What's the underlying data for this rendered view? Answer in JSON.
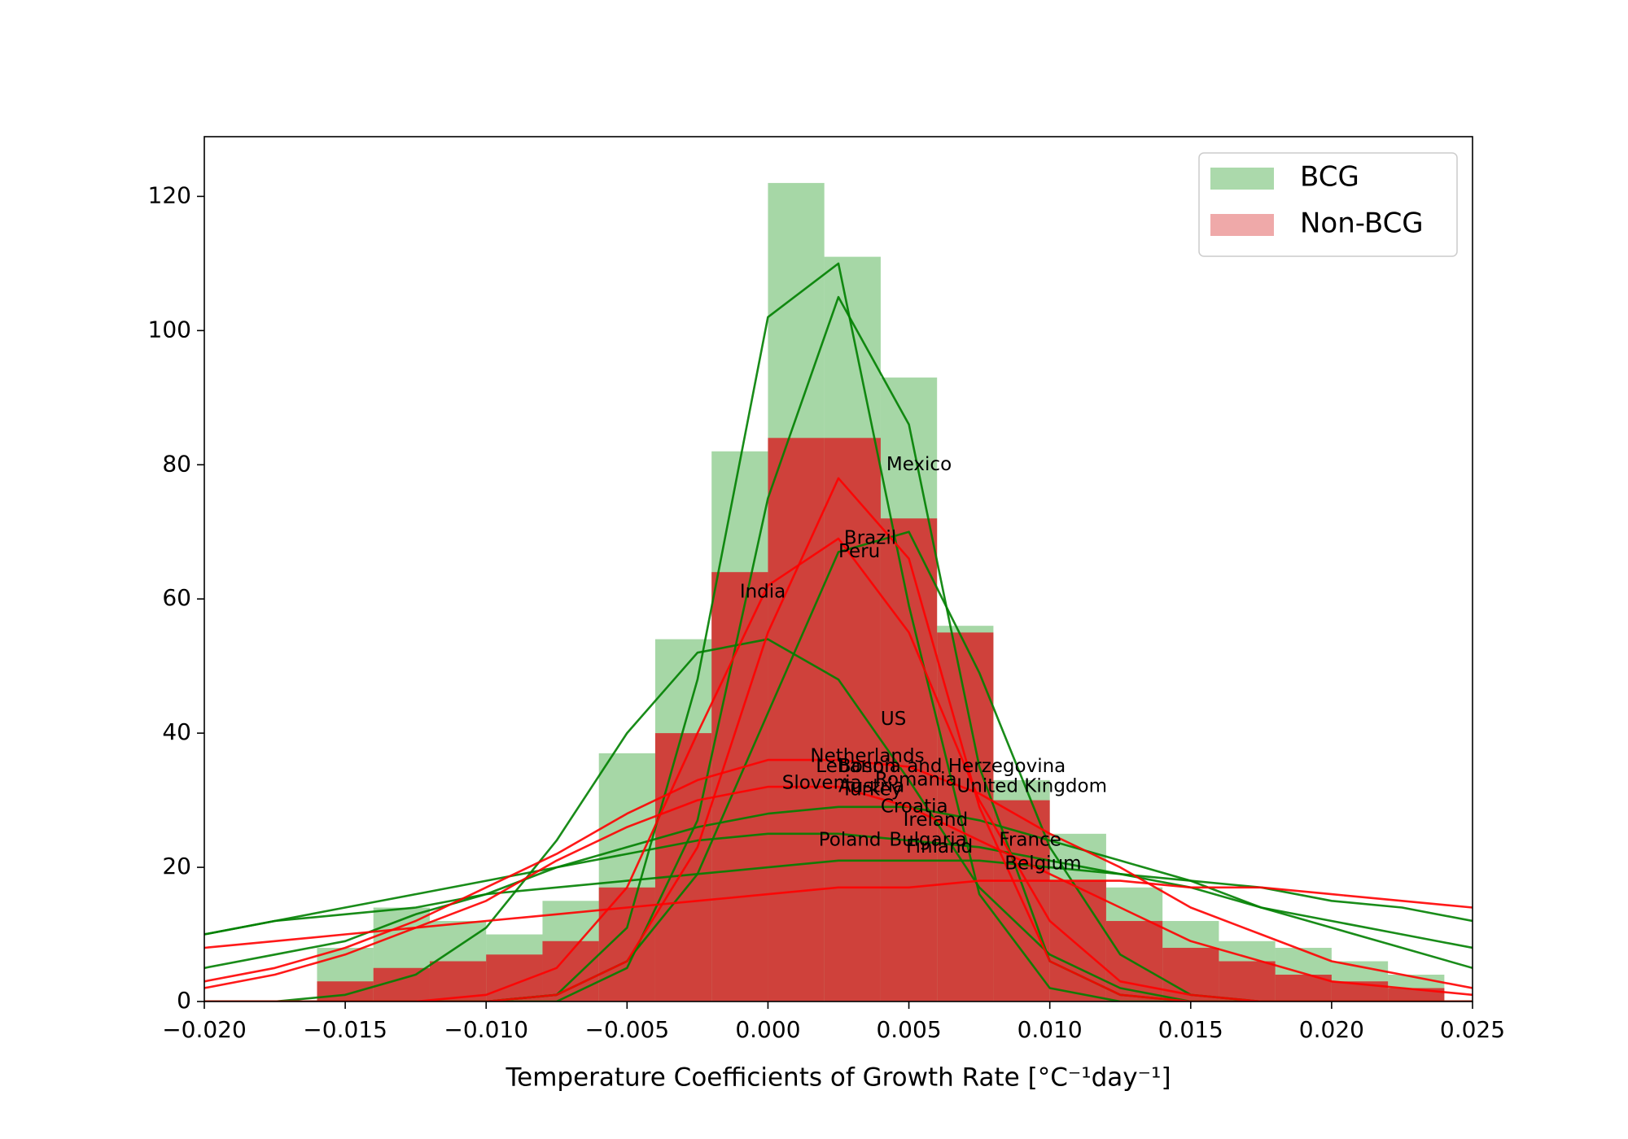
{
  "chart_data": {
    "type": "histogram",
    "xlabel": "Temperature Coefficients of Growth Rate [°C⁻¹day⁻¹]",
    "xlim": [
      -0.02,
      0.025
    ],
    "ylim": [
      0,
      128.9
    ],
    "xticks": [
      {
        "value": -0.02,
        "label": "−0.020"
      },
      {
        "value": -0.015,
        "label": "−0.015"
      },
      {
        "value": -0.01,
        "label": "−0.010"
      },
      {
        "value": -0.005,
        "label": "−0.005"
      },
      {
        "value": 0,
        "label": "0.000"
      },
      {
        "value": 0.005,
        "label": "0.005"
      },
      {
        "value": 0.01,
        "label": "0.010"
      },
      {
        "value": 0.015,
        "label": "0.015"
      },
      {
        "value": 0.02,
        "label": "0.020"
      },
      {
        "value": 0.025,
        "label": "0.025"
      }
    ],
    "yticks": [
      0,
      20,
      40,
      60,
      80,
      100,
      120
    ],
    "legend": "upper right",
    "series": [
      {
        "name": "BCG",
        "color": "#2ca02c",
        "bins": [
          -0.016,
          -0.014,
          -0.012,
          -0.01,
          -0.008,
          -0.006,
          -0.004,
          -0.002,
          0,
          0.002,
          0.004,
          0.006,
          0.008,
          0.01,
          0.012,
          0.014,
          0.016,
          0.018,
          0.02,
          0.022,
          0.024
        ],
        "values": [
          8,
          14,
          12,
          10,
          15,
          37,
          54,
          82,
          122,
          111,
          93,
          56,
          33,
          25,
          17,
          12,
          9,
          8,
          6,
          4
        ]
      },
      {
        "name": "Non-BCG",
        "color": "#d62728",
        "bins": [
          -0.016,
          -0.014,
          -0.012,
          -0.01,
          -0.008,
          -0.006,
          -0.004,
          -0.002,
          0,
          0.002,
          0.004,
          0.006,
          0.008,
          0.01,
          0.012,
          0.014,
          0.016,
          0.018,
          0.02,
          0.022,
          0.024
        ],
        "values": [
          3,
          5,
          6,
          7,
          9,
          17,
          40,
          64,
          84,
          84,
          72,
          55,
          30,
          18,
          12,
          8,
          6,
          4,
          3,
          2
        ]
      }
    ],
    "curve_x": [
      -0.02,
      -0.0175,
      -0.015,
      -0.0125,
      -0.01,
      -0.0075,
      -0.005,
      -0.0025,
      0,
      0.0025,
      0.005,
      0.0075,
      0.01,
      0.0125,
      0.015,
      0.0175,
      0.02,
      0.0225,
      0.025
    ],
    "curves": [
      {
        "color": "#008000",
        "values": [
          0,
          0,
          0,
          0,
          0,
          1,
          11,
          48,
          102,
          110,
          59,
          16,
          2,
          0,
          0,
          0,
          0,
          0,
          0
        ]
      },
      {
        "color": "#008000",
        "values": [
          0,
          0,
          0,
          0,
          0,
          0,
          5,
          27,
          75,
          105,
          86,
          35,
          6,
          1,
          0,
          0,
          0,
          0,
          0
        ]
      },
      {
        "color": "#008000",
        "values": [
          0,
          0,
          0,
          0,
          0,
          1,
          6,
          19,
          43,
          67,
          70,
          49,
          23,
          7,
          1,
          0,
          0,
          0,
          0
        ]
      },
      {
        "color": "#008000",
        "values": [
          0,
          0,
          1,
          4,
          11,
          24,
          40,
          52,
          54,
          48,
          33,
          17,
          7,
          2,
          0,
          0,
          0,
          0,
          0
        ]
      },
      {
        "color": "#008000",
        "values": [
          5,
          7,
          9,
          13,
          16,
          20,
          23,
          26,
          28,
          29,
          29,
          27,
          24,
          21,
          18,
          14,
          11,
          8,
          5
        ]
      },
      {
        "color": "#008000",
        "values": [
          10,
          12,
          13,
          14,
          16,
          17,
          18,
          19,
          20,
          21,
          21,
          21,
          20,
          19,
          18,
          17,
          15,
          14,
          12
        ]
      },
      {
        "color": "#008000",
        "values": [
          10,
          12,
          14,
          16,
          18,
          20,
          22,
          24,
          25,
          25,
          24,
          23,
          21,
          19,
          17,
          14,
          12,
          10,
          8
        ]
      },
      {
        "color": "#ff0000",
        "values": [
          0,
          0,
          0,
          0,
          0,
          1,
          6,
          23,
          55,
          78,
          66,
          29,
          6,
          1,
          0,
          0,
          0,
          0,
          0
        ]
      },
      {
        "color": "#ff0000",
        "values": [
          3,
          5,
          8,
          12,
          17,
          22,
          28,
          33,
          36,
          36,
          35,
          31,
          25,
          20,
          14,
          10,
          6,
          4,
          2
        ]
      },
      {
        "color": "#ff0000",
        "values": [
          2,
          4,
          7,
          11,
          15,
          21,
          26,
          30,
          32,
          32,
          29,
          24,
          19,
          14,
          9,
          6,
          3,
          2,
          1
        ]
      },
      {
        "color": "#ff0000",
        "values": [
          8,
          9,
          10,
          11,
          12,
          13,
          14,
          15,
          16,
          17,
          17,
          18,
          18,
          18,
          17,
          17,
          16,
          15,
          14
        ]
      },
      {
        "color": "#ff0000",
        "values": [
          0,
          0,
          0,
          0,
          1,
          5,
          17,
          40,
          62,
          69,
          55,
          30,
          12,
          3,
          1,
          0,
          0,
          0,
          0
        ]
      }
    ],
    "annotations": [
      {
        "text": "Mexico",
        "x": 0.0042,
        "y": 80
      },
      {
        "text": "Brazil",
        "x": 0.0027,
        "y": 69
      },
      {
        "text": "Peru",
        "x": 0.0025,
        "y": 67
      },
      {
        "text": "India",
        "x": -0.001,
        "y": 61
      },
      {
        "text": "US",
        "x": 0.004,
        "y": 42
      },
      {
        "text": "Netherlands",
        "x": 0.0015,
        "y": 36.5
      },
      {
        "text": "Lebanon",
        "x": 0.0017,
        "y": 35
      },
      {
        "text": "Bosnia and Herzegovina",
        "x": 0.0025,
        "y": 35
      },
      {
        "text": "Slovenia",
        "x": 0.0005,
        "y": 32.5
      },
      {
        "text": "Austria",
        "x": 0.0025,
        "y": 32
      },
      {
        "text": "Romania",
        "x": 0.0038,
        "y": 33
      },
      {
        "text": "Turkey",
        "x": 0.0026,
        "y": 31.5
      },
      {
        "text": "United Kingdom",
        "x": 0.0067,
        "y": 32
      },
      {
        "text": "Croatia",
        "x": 0.004,
        "y": 29
      },
      {
        "text": "Ireland",
        "x": 0.0048,
        "y": 27
      },
      {
        "text": "Poland",
        "x": 0.0018,
        "y": 24
      },
      {
        "text": "Bulgaria",
        "x": 0.0043,
        "y": 24
      },
      {
        "text": "Finland",
        "x": 0.0049,
        "y": 23
      },
      {
        "text": "France",
        "x": 0.0082,
        "y": 24
      },
      {
        "text": "Belgium",
        "x": 0.0084,
        "y": 20.5
      }
    ]
  }
}
